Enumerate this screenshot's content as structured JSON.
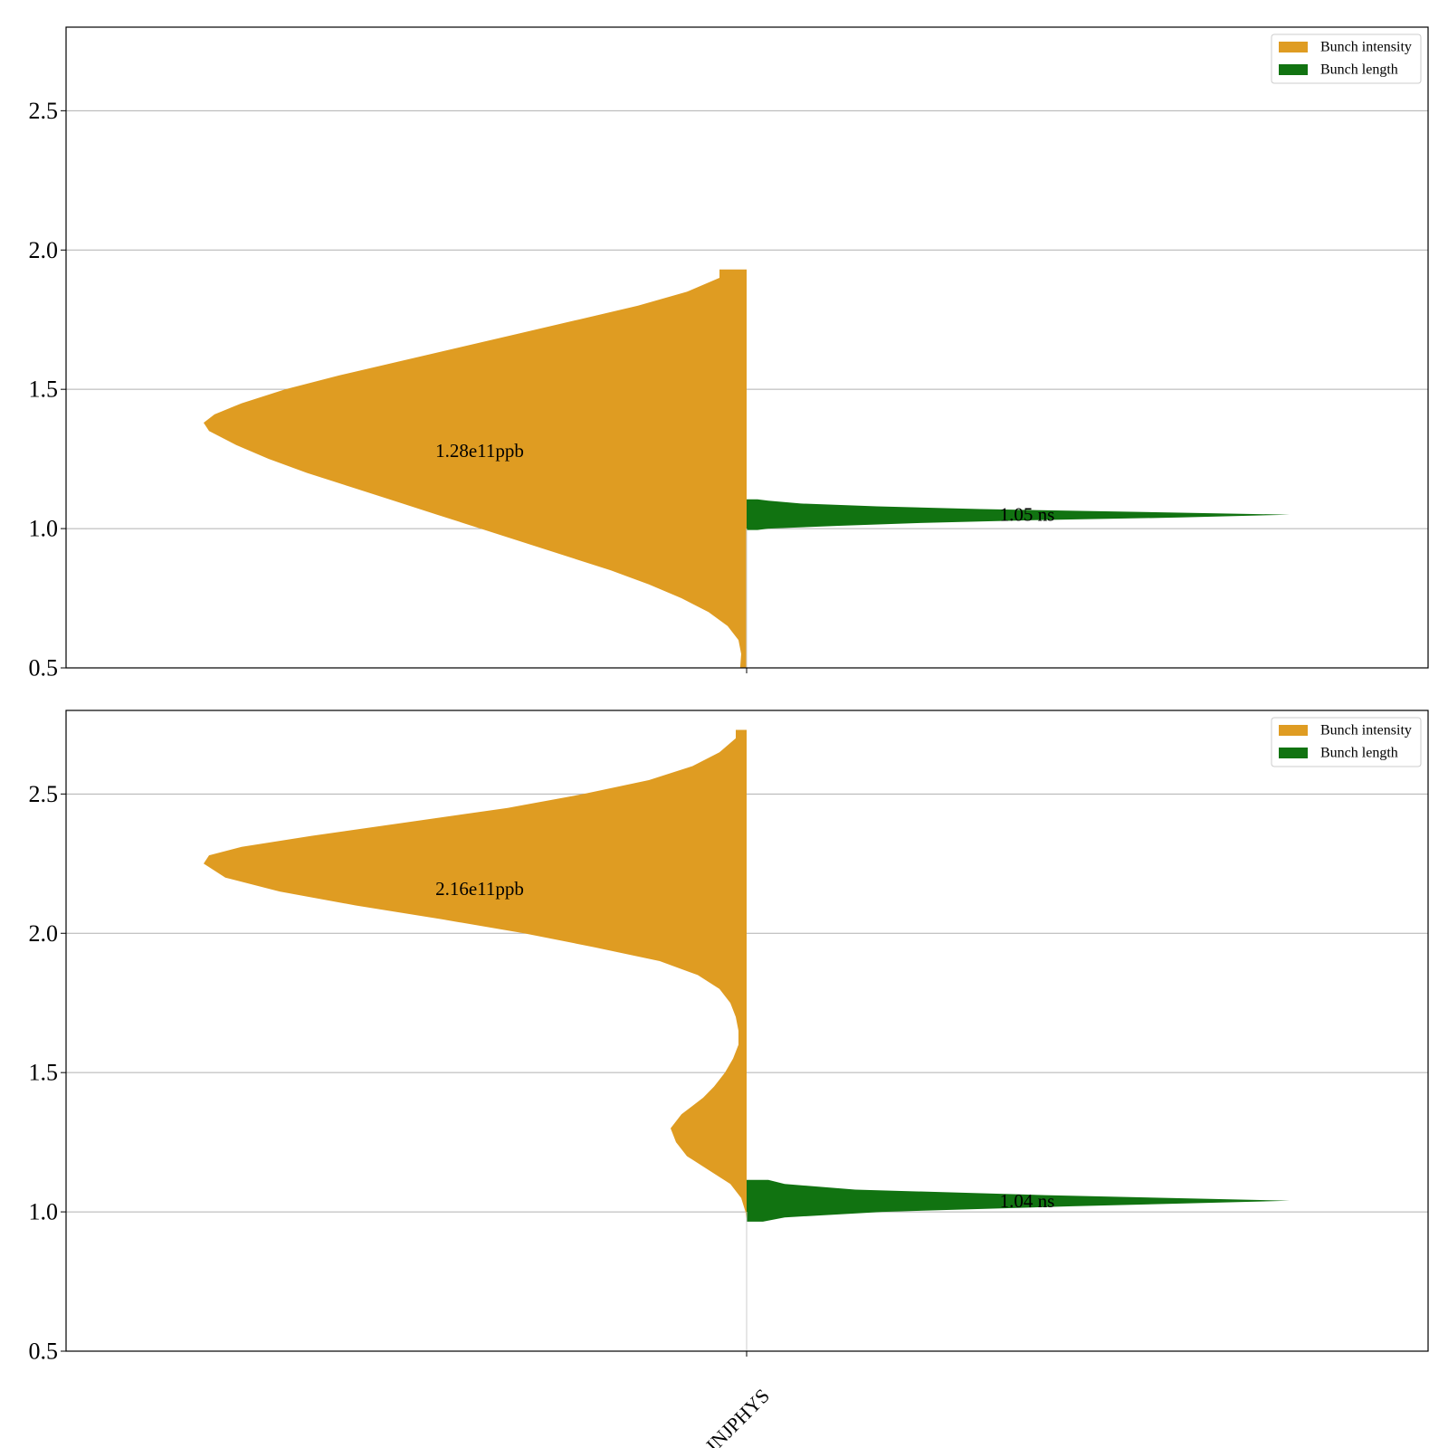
{
  "colors": {
    "intensity": "#df9c22",
    "length": "#117311",
    "grid": "#b0b0b0",
    "axes": "#000000"
  },
  "x_category": "INJPHYS",
  "chart_data": [
    {
      "type": "violin",
      "title": "",
      "xlabel": "",
      "ylabel": "",
      "ylim": [
        0.5,
        2.8
      ],
      "yticks": [
        "0.5",
        "1.0",
        "1.5",
        "2.0",
        "2.5"
      ],
      "grid": true,
      "legend_position": "top-right",
      "categories": [
        "INJPHYS"
      ],
      "series": [
        {
          "name": "Bunch intensity",
          "side": "left",
          "y": [
            0.5,
            0.55,
            0.6,
            0.65,
            0.7,
            0.75,
            0.8,
            0.85,
            0.9,
            0.95,
            1.0,
            1.05,
            1.1,
            1.15,
            1.2,
            1.25,
            1.3,
            1.35,
            1.38,
            1.41,
            1.45,
            1.5,
            1.55,
            1.6,
            1.65,
            1.7,
            1.75,
            1.8,
            1.85,
            1.9,
            1.93
          ],
          "density": [
            0.012,
            0.01,
            0.015,
            0.035,
            0.07,
            0.12,
            0.18,
            0.25,
            0.33,
            0.41,
            0.49,
            0.57,
            0.65,
            0.73,
            0.81,
            0.88,
            0.94,
            0.99,
            1.0,
            0.98,
            0.93,
            0.85,
            0.75,
            0.64,
            0.53,
            0.42,
            0.31,
            0.2,
            0.11,
            0.05,
            0.05
          ],
          "median_label": "1.28e11ppb",
          "median_value": 1.28
        },
        {
          "name": "Bunch length",
          "side": "right",
          "y": [
            0.995,
            1.0,
            1.01,
            1.02,
            1.03,
            1.04,
            1.05,
            1.06,
            1.07,
            1.08,
            1.09,
            1.1,
            1.105
          ],
          "density": [
            0.02,
            0.04,
            0.17,
            0.32,
            0.52,
            0.8,
            1.0,
            0.72,
            0.43,
            0.24,
            0.1,
            0.04,
            0.02
          ],
          "median_label": "1.05 ns",
          "median_value": 1.05
        }
      ]
    },
    {
      "type": "violin",
      "title": "",
      "xlabel": "",
      "ylabel": "",
      "ylim": [
        0.5,
        2.8
      ],
      "yticks": [
        "0.5",
        "1.0",
        "1.5",
        "2.0",
        "2.5"
      ],
      "grid": true,
      "legend_position": "top-right",
      "categories": [
        "INJPHYS"
      ],
      "series": [
        {
          "name": "Bunch intensity",
          "side": "left",
          "y": [
            0.96,
            1.0,
            1.05,
            1.1,
            1.15,
            1.2,
            1.25,
            1.3,
            1.35,
            1.38,
            1.41,
            1.45,
            1.5,
            1.55,
            1.6,
            1.65,
            1.7,
            1.75,
            1.8,
            1.85,
            1.9,
            1.95,
            2.0,
            2.05,
            2.1,
            2.15,
            2.2,
            2.25,
            2.28,
            2.31,
            2.35,
            2.4,
            2.45,
            2.5,
            2.55,
            2.6,
            2.65,
            2.7,
            2.73
          ],
          "density": [
            0.0,
            0.002,
            0.01,
            0.03,
            0.07,
            0.11,
            0.13,
            0.14,
            0.12,
            0.1,
            0.08,
            0.06,
            0.04,
            0.025,
            0.015,
            0.015,
            0.02,
            0.03,
            0.05,
            0.09,
            0.16,
            0.28,
            0.41,
            0.56,
            0.72,
            0.86,
            0.96,
            1.0,
            0.99,
            0.93,
            0.8,
            0.62,
            0.44,
            0.3,
            0.18,
            0.1,
            0.05,
            0.02,
            0.02
          ],
          "median_label": "2.16e11ppb",
          "median_value": 2.16
        },
        {
          "name": "Bunch length",
          "side": "right",
          "y": [
            0.965,
            0.98,
            1.0,
            1.02,
            1.04,
            1.06,
            1.08,
            1.1,
            1.115
          ],
          "density": [
            0.03,
            0.07,
            0.25,
            0.6,
            1.0,
            0.55,
            0.2,
            0.07,
            0.04
          ],
          "median_label": "1.04 ns",
          "median_value": 1.04
        }
      ]
    }
  ]
}
